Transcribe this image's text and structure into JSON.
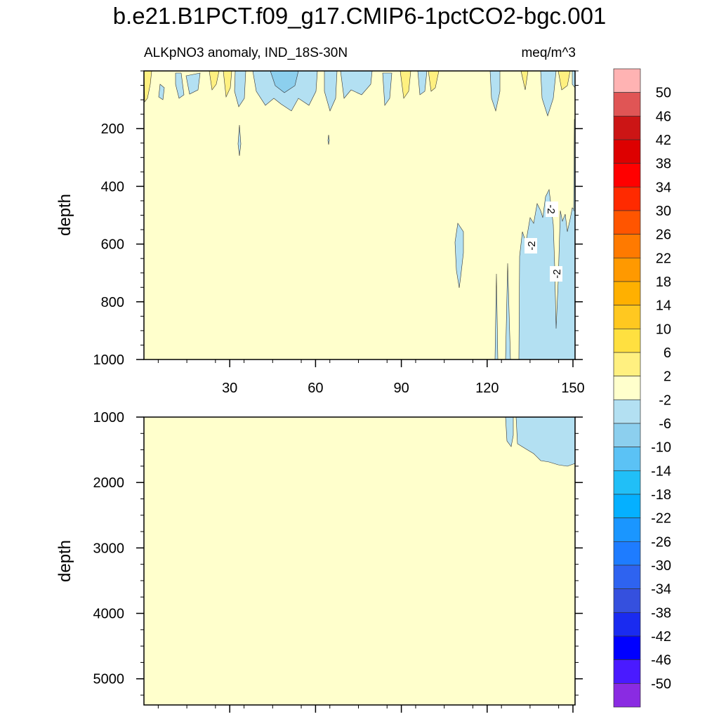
{
  "title": "b.e21.B1PCT.f09_g17.CMIP6-1pctCO2-bgc.001",
  "chart_data": {
    "type": "contour",
    "left_label": "ALKpNO3 anomaly, IND_18S-30N",
    "right_label": "meq/m^3",
    "x": {
      "ticks": [
        30,
        60,
        90,
        120,
        150
      ],
      "range": [
        0,
        150
      ]
    },
    "panels": [
      {
        "name": "upper",
        "ylabel": "depth",
        "y_range": [
          0,
          1000
        ],
        "y_ticks": [
          200,
          400,
          600,
          800,
          1000
        ],
        "contour_labels": [
          "-2",
          "-2",
          "-2"
        ],
        "background_level": "-2 to 2",
        "features": [
          "surface mixed 2-6 and -6 to -2 patches above 150 m",
          "-6 to -2 region east of 130 deg between 450 and 1000 m",
          "narrow -6 to -2 lens near 111 deg, 530-750 m"
        ]
      },
      {
        "name": "lower",
        "ylabel": "depth",
        "y_range": [
          1000,
          5400
        ],
        "y_ticks": [
          1000,
          2000,
          3000,
          4000,
          5000
        ],
        "background_level": "-2 to 2",
        "features": [
          "-6 to -2 region east of 128 deg from 1000 to about 1750 m"
        ]
      }
    ],
    "colorbar": {
      "labels": [
        "50",
        "46",
        "42",
        "38",
        "34",
        "30",
        "26",
        "22",
        "18",
        "14",
        "10",
        "6",
        "2",
        "-2",
        "-6",
        "-10",
        "-14",
        "-18",
        "-22",
        "-26",
        "-30",
        "-34",
        "-38",
        "-42",
        "-46",
        "-50"
      ],
      "colors": [
        "#ffb3b3",
        "#e05555",
        "#cc1515",
        "#dd0000",
        "#ff0000",
        "#ff2a00",
        "#ff5500",
        "#ff7a00",
        "#ff9900",
        "#ffb000",
        "#ffc820",
        "#ffe040",
        "#fff080",
        "#ffffcc",
        "#b3e0f2",
        "#8ccfee",
        "#5bc2f5",
        "#21bff7",
        "#05b0ff",
        "#1a96ff",
        "#1e7cff",
        "#2e63f0",
        "#3550de",
        "#1a2bf0",
        "#0000ff",
        "#4a1aff",
        "#8a2be2"
      ]
    }
  }
}
